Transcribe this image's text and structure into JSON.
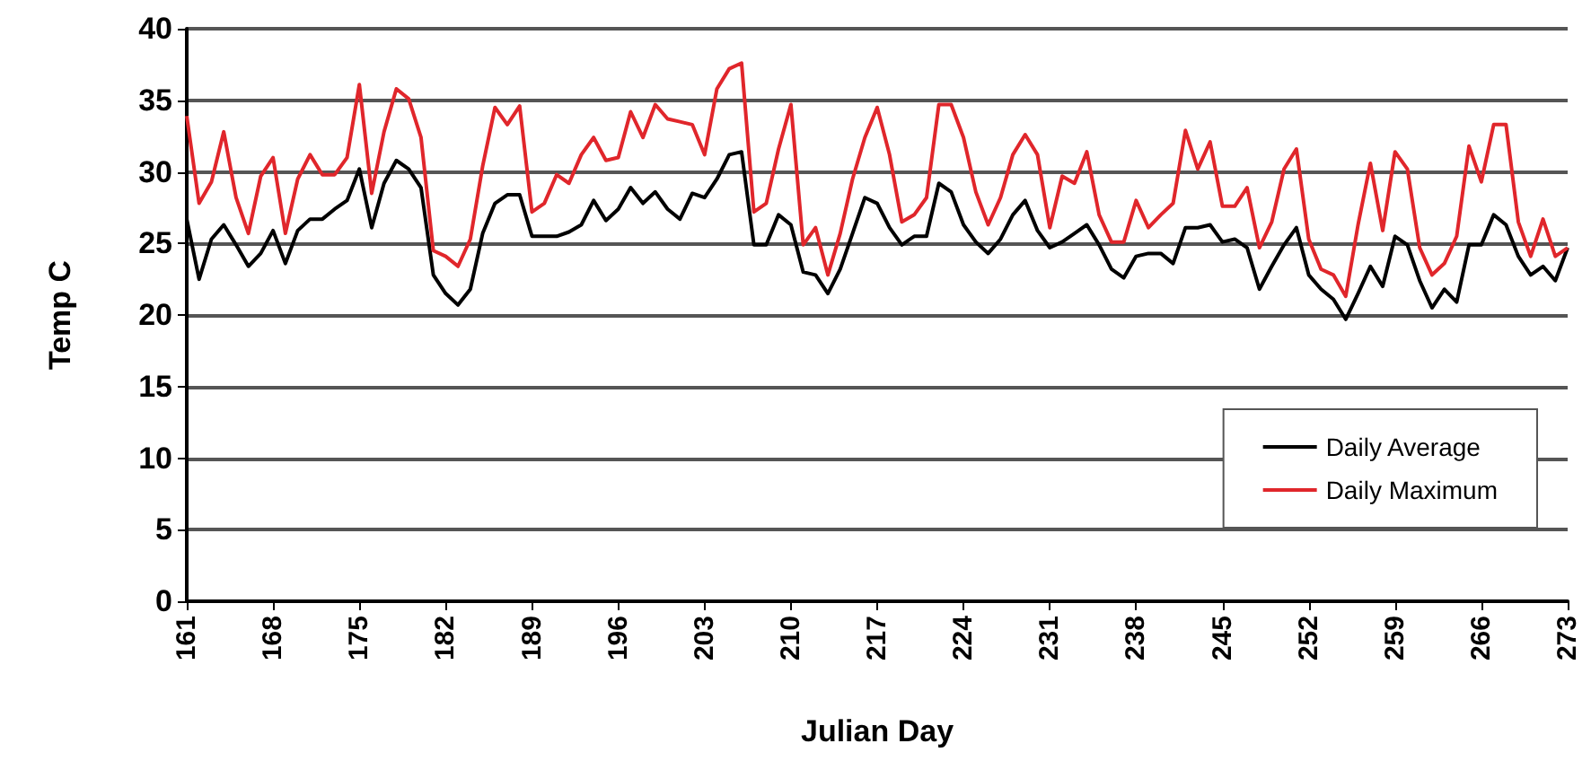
{
  "chart_data": {
    "type": "line",
    "xlabel": "Julian Day",
    "ylabel": "Temp C",
    "x": [
      161,
      162,
      163,
      164,
      165,
      166,
      167,
      168,
      169,
      170,
      171,
      172,
      173,
      174,
      175,
      176,
      177,
      178,
      179,
      180,
      181,
      182,
      183,
      184,
      185,
      186,
      187,
      188,
      189,
      190,
      191,
      192,
      193,
      194,
      195,
      196,
      197,
      198,
      199,
      200,
      201,
      202,
      203,
      204,
      205,
      206,
      207,
      208,
      209,
      210,
      211,
      212,
      213,
      214,
      215,
      216,
      217,
      218,
      219,
      220,
      221,
      222,
      223,
      224,
      225,
      226,
      227,
      228,
      229,
      230,
      231,
      232,
      233,
      234,
      235,
      236,
      237,
      238,
      239,
      240,
      241,
      242,
      243,
      244,
      245,
      246,
      247,
      248,
      249,
      250,
      251,
      252,
      253,
      254,
      255,
      256,
      257,
      258,
      259,
      260,
      261,
      262,
      263,
      264,
      265,
      266,
      267,
      268,
      269,
      270,
      271,
      272,
      273
    ],
    "series": [
      {
        "name": "Daily Average",
        "color": "#000000",
        "values": [
          26.7,
          22.5,
          25.3,
          26.3,
          24.9,
          23.4,
          24.3,
          25.9,
          23.6,
          25.9,
          26.7,
          26.7,
          27.4,
          28.0,
          30.2,
          26.1,
          29.2,
          30.8,
          30.2,
          28.9,
          22.8,
          21.5,
          20.7,
          21.8,
          25.7,
          27.8,
          28.4,
          28.4,
          25.5,
          25.5,
          25.5,
          25.8,
          26.3,
          28.0,
          26.6,
          27.4,
          28.9,
          27.8,
          28.6,
          27.4,
          26.7,
          28.5,
          28.2,
          29.5,
          31.2,
          31.4,
          24.9,
          24.9,
          27.0,
          26.3,
          23.0,
          22.8,
          21.5,
          23.2,
          25.7,
          28.2,
          27.8,
          26.1,
          24.9,
          25.5,
          25.5,
          29.2,
          28.6,
          26.3,
          25.1,
          24.3,
          25.3,
          27.0,
          28.0,
          25.9,
          24.7,
          25.1,
          25.7,
          26.3,
          24.9,
          23.2,
          22.6,
          24.1,
          24.3,
          24.3,
          23.6,
          26.1,
          26.1,
          26.3,
          25.1,
          25.3,
          24.7,
          21.8,
          23.4,
          24.9,
          26.1,
          22.8,
          21.8,
          21.1,
          19.7,
          21.5,
          23.4,
          22.0,
          25.5,
          24.9,
          22.4,
          20.5,
          21.8,
          20.9,
          24.9,
          24.9,
          27.0,
          26.3,
          24.1,
          22.8,
          23.4,
          22.4,
          24.7
        ]
      },
      {
        "name": "Daily Maximum",
        "color": "#e0262b",
        "values": [
          33.9,
          27.8,
          29.3,
          32.8,
          28.2,
          25.7,
          29.7,
          31.0,
          25.7,
          29.5,
          31.2,
          29.8,
          29.8,
          31.0,
          36.1,
          28.5,
          32.8,
          35.8,
          35.1,
          32.4,
          24.5,
          24.1,
          23.4,
          25.3,
          30.4,
          34.5,
          33.3,
          34.6,
          27.2,
          27.8,
          29.8,
          29.2,
          31.2,
          32.4,
          30.8,
          31.0,
          34.2,
          32.4,
          34.7,
          33.7,
          33.5,
          33.3,
          31.2,
          35.8,
          37.2,
          37.6,
          27.2,
          27.8,
          31.6,
          34.7,
          24.9,
          26.1,
          22.8,
          25.7,
          29.5,
          32.4,
          34.5,
          31.2,
          26.5,
          27.0,
          28.2,
          34.7,
          34.7,
          32.4,
          28.6,
          26.3,
          28.2,
          31.2,
          32.6,
          31.2,
          26.1,
          29.7,
          29.2,
          31.4,
          27.0,
          25.1,
          25.1,
          28.0,
          26.1,
          27.0,
          27.8,
          32.9,
          30.2,
          32.1,
          27.6,
          27.6,
          28.9,
          24.7,
          26.5,
          30.2,
          31.6,
          25.3,
          23.2,
          22.8,
          21.3,
          26.3,
          30.6,
          25.9,
          31.4,
          30.2,
          24.7,
          22.8,
          23.6,
          25.5,
          31.8,
          29.3,
          33.3,
          33.3,
          26.5,
          24.1,
          26.7,
          24.1,
          24.7
        ]
      }
    ],
    "xlim": [
      161,
      273
    ],
    "xticks": [
      161,
      168,
      175,
      182,
      189,
      196,
      203,
      210,
      217,
      224,
      231,
      238,
      245,
      252,
      259,
      266,
      273
    ],
    "ylim": [
      0,
      40
    ],
    "yticks": [
      0,
      5,
      10,
      15,
      20,
      25,
      30,
      35,
      40
    ],
    "grid": "y",
    "legend": "bottom right",
    "marker": "none",
    "line_style": "solid"
  }
}
